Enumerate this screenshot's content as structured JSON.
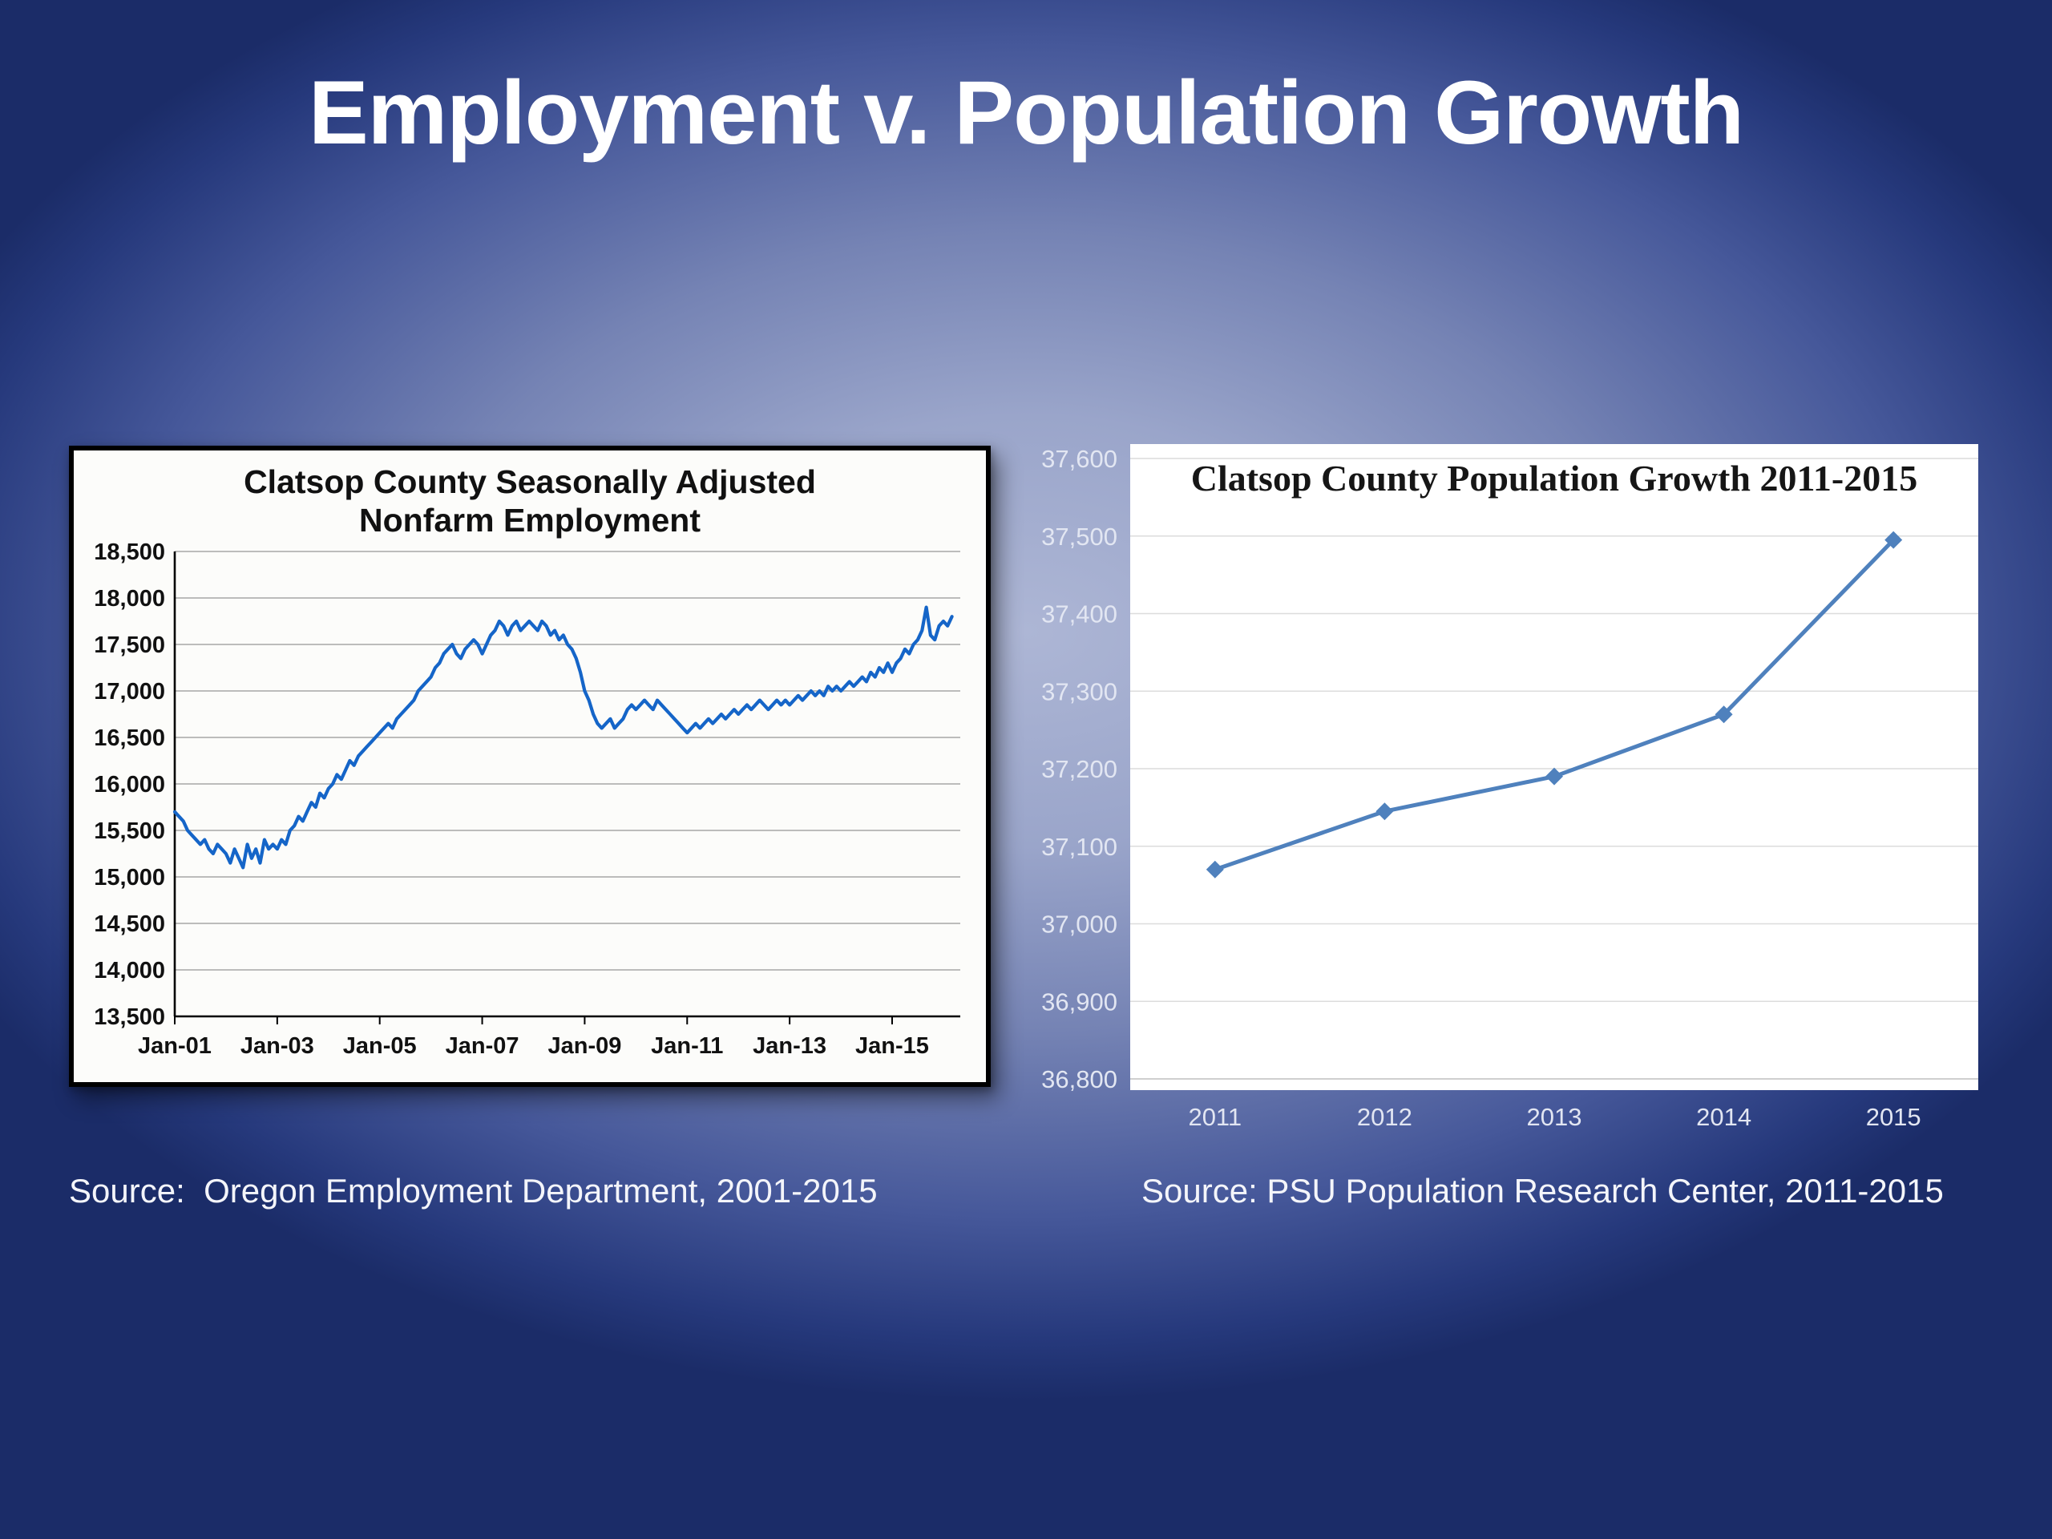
{
  "slide": {
    "title": "Employment v. Population Growth",
    "source_left": "Source:  Oregon Employment Department, 2001-2015",
    "source_right": "Source: PSU Population Research Center, 2011-2015"
  },
  "chart_data": [
    {
      "type": "line",
      "title": "Clatsop County Seasonally Adjusted Nonfarm Employment",
      "title_lines": [
        "Clatsop County Seasonally Adjusted",
        "Nonfarm Employment"
      ],
      "xlabel": "",
      "ylabel": "",
      "ylim": [
        13500,
        18500
      ],
      "ytick_step": 500,
      "ytick_labels": [
        "18,500",
        "18,000",
        "17,500",
        "17,000",
        "16,500",
        "16,000",
        "15,500",
        "15,000",
        "14,500",
        "14,000",
        "13,500"
      ],
      "xlim": [
        2001,
        2016.33
      ],
      "xticks": [
        {
          "year": 2001,
          "label": "Jan-01"
        },
        {
          "year": 2003,
          "label": "Jan-03"
        },
        {
          "year": 2005,
          "label": "Jan-05"
        },
        {
          "year": 2007,
          "label": "Jan-07"
        },
        {
          "year": 2009,
          "label": "Jan-09"
        },
        {
          "year": 2011,
          "label": "Jan-11"
        },
        {
          "year": 2013,
          "label": "Jan-13"
        },
        {
          "year": 2015,
          "label": "Jan-15"
        }
      ],
      "x_start_year": 2001,
      "x_step_months": 1,
      "grid": true,
      "line_color": "#1565c8",
      "values": [
        15700,
        15650,
        15600,
        15500,
        15450,
        15400,
        15350,
        15400,
        15300,
        15250,
        15350,
        15300,
        15250,
        15150,
        15300,
        15200,
        15100,
        15350,
        15200,
        15300,
        15150,
        15400,
        15300,
        15350,
        15300,
        15400,
        15350,
        15500,
        15550,
        15650,
        15600,
        15700,
        15800,
        15750,
        15900,
        15850,
        15950,
        16000,
        16100,
        16050,
        16150,
        16250,
        16200,
        16300,
        16350,
        16400,
        16450,
        16500,
        16550,
        16600,
        16650,
        16600,
        16700,
        16750,
        16800,
        16850,
        16900,
        17000,
        17050,
        17100,
        17150,
        17250,
        17300,
        17400,
        17450,
        17500,
        17400,
        17350,
        17450,
        17500,
        17550,
        17500,
        17400,
        17500,
        17600,
        17650,
        17750,
        17700,
        17600,
        17700,
        17750,
        17650,
        17700,
        17750,
        17700,
        17650,
        17750,
        17700,
        17600,
        17650,
        17550,
        17600,
        17500,
        17450,
        17350,
        17200,
        17000,
        16900,
        16750,
        16650,
        16600,
        16650,
        16700,
        16600,
        16650,
        16700,
        16800,
        16850,
        16800,
        16850,
        16900,
        16850,
        16800,
        16900,
        16850,
        16800,
        16750,
        16700,
        16650,
        16600,
        16550,
        16600,
        16650,
        16600,
        16650,
        16700,
        16650,
        16700,
        16750,
        16700,
        16750,
        16800,
        16750,
        16800,
        16850,
        16800,
        16850,
        16900,
        16850,
        16800,
        16850,
        16900,
        16850,
        16900,
        16850,
        16900,
        16950,
        16900,
        16950,
        17000,
        16950,
        17000,
        16950,
        17050,
        17000,
        17050,
        17000,
        17050,
        17100,
        17050,
        17100,
        17150,
        17100,
        17200,
        17150,
        17250,
        17200,
        17300,
        17200,
        17300,
        17350,
        17450,
        17400,
        17500,
        17550,
        17650,
        17900,
        17600,
        17550,
        17700,
        17750,
        17700,
        17800
      ]
    },
    {
      "type": "line",
      "title": "Clatsop County Population Growth 2011-2015",
      "xlabel": "",
      "ylabel": "",
      "categories": [
        "2011",
        "2012",
        "2013",
        "2014",
        "2015"
      ],
      "values": [
        37070,
        37145,
        37190,
        37270,
        37495
      ],
      "ylim": [
        36800,
        37600
      ],
      "ytick_step": 100,
      "ytick_labels": [
        "37,600",
        "37,500",
        "37,400",
        "37,300",
        "37,200",
        "37,100",
        "37,000",
        "36,900",
        "36,800"
      ],
      "grid": true,
      "marker": "diamond",
      "line_color": "#4f81bd"
    }
  ]
}
